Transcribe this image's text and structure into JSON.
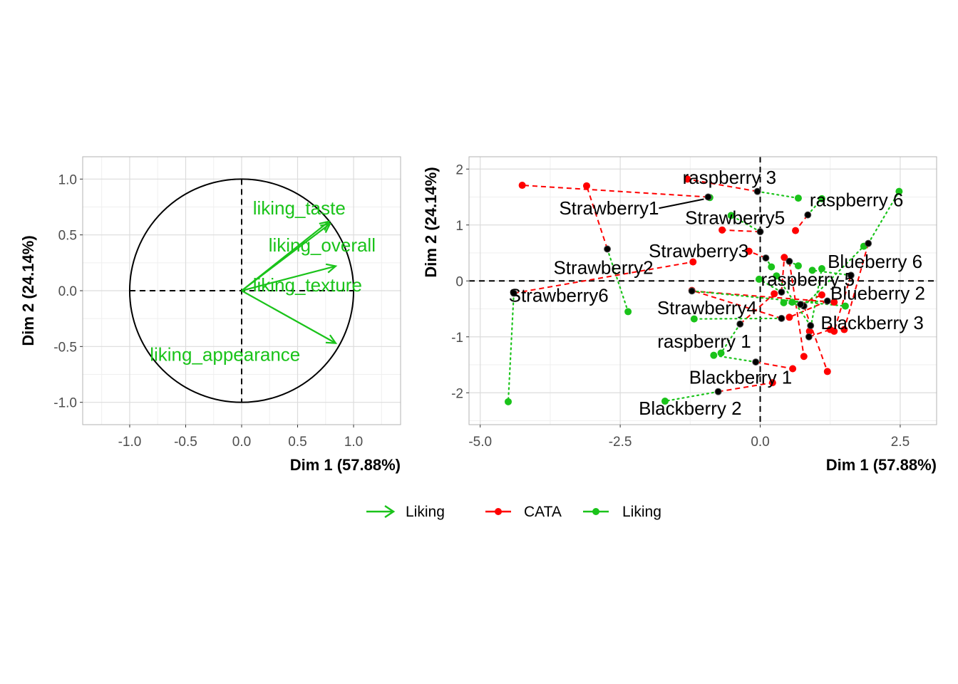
{
  "colors": {
    "cata": "#ff0000",
    "liking": "#1ac31a",
    "consensus": "#000000",
    "grid_major": "#dcdcdc",
    "grid_minor": "#efefef",
    "panel_border": "#b3b3b3"
  },
  "chart_data": [
    {
      "type": "scatter",
      "subtype": "correlation-circle",
      "xlabel": "Dim 1 (57.88%)",
      "ylabel": "Dim 2 (24.14%)",
      "xlim": [
        -1.42,
        1.42
      ],
      "ylim": [
        -1.2,
        1.2
      ],
      "xticks": [
        -1.0,
        -0.5,
        0.0,
        0.5,
        1.0
      ],
      "xtick_labels": [
        "-1.0",
        "-0.5",
        "0.0",
        "0.5",
        "1.0"
      ],
      "yticks": [
        -1.0,
        -0.5,
        0.0,
        0.5,
        1.0
      ],
      "ytick_labels": [
        "-1.0",
        "-0.5",
        "0.0",
        "0.5",
        "1.0"
      ],
      "grid": true,
      "vectors": [
        {
          "label": "liking_taste",
          "x": 0.78,
          "y": 0.62
        },
        {
          "label": "liking_overall",
          "x": 0.79,
          "y": 0.6
        },
        {
          "label": "liking_texture",
          "x": 0.84,
          "y": 0.22
        },
        {
          "label": "liking_appearance",
          "x": 0.84,
          "y": -0.47
        }
      ]
    },
    {
      "type": "scatter",
      "subtype": "partial-individuals",
      "xlabel": "Dim 1 (57.88%)",
      "ylabel": "Dim 2 (24.14%)",
      "xlim": [
        -5.2,
        3.15
      ],
      "ylim": [
        -2.57,
        2.22
      ],
      "xticks": [
        -5.0,
        -2.5,
        0.0,
        2.5
      ],
      "xtick_labels": [
        "-5.0",
        "-2.5",
        "0.0",
        "2.5"
      ],
      "yticks": [
        -2,
        -1,
        0,
        1,
        2
      ],
      "ytick_labels": [
        "-2",
        "-1",
        "0",
        "1",
        "2"
      ],
      "grid": true,
      "products": [
        {
          "label": "Strawberry1",
          "x": -0.93,
          "y": 1.5,
          "cata": [
            -4.25,
            1.71
          ],
          "liking": [
            -0.9,
            1.49
          ]
        },
        {
          "label": "Strawberry2",
          "x": -2.73,
          "y": 0.57,
          "cata": [
            -3.1,
            1.7
          ],
          "liking": [
            -2.36,
            -0.55
          ]
        },
        {
          "label": "Strawberry3",
          "x": 0.1,
          "y": 0.41,
          "cata": [
            -0.2,
            0.53
          ],
          "liking": [
            0.2,
            0.25
          ]
        },
        {
          "label": "Strawberry4",
          "x": -0.36,
          "y": -0.77,
          "cata": [
            0.25,
            -0.23
          ],
          "liking": [
            -0.7,
            -1.29
          ]
        },
        {
          "label": "Strawberry5",
          "x": 0.0,
          "y": 0.88,
          "cata": [
            -0.68,
            0.91
          ],
          "liking": [
            -0.52,
            1.17
          ]
        },
        {
          "label": "Strawberry6",
          "x": -4.4,
          "y": -0.22,
          "cata": [
            -1.2,
            0.34
          ],
          "liking": [
            -4.5,
            -2.16
          ]
        },
        {
          "label": "raspberry 1",
          "x": -0.08,
          "y": -1.45,
          "cata": [
            0.58,
            -1.57
          ],
          "liking": [
            -0.83,
            -1.33
          ]
        },
        {
          "label": "raspberry 3",
          "x": -0.05,
          "y": 1.6,
          "cata": [
            -1.3,
            1.82
          ],
          "liking": [
            0.68,
            1.48
          ]
        },
        {
          "label": "raspberry 5",
          "x": 0.38,
          "y": -0.2,
          "cata": [
            0.43,
            0.42
          ],
          "liking": [
            -0.02,
            0.03
          ]
        },
        {
          "label": "raspberry 6",
          "x": 0.85,
          "y": 1.18,
          "cata": [
            0.63,
            0.9
          ],
          "liking": [
            1.1,
            1.47
          ]
        },
        {
          "label": "Blueberry 6",
          "x": 1.93,
          "y": 0.67,
          "cata": [
            1.5,
            -0.87
          ],
          "liking": [
            2.48,
            1.6
          ]
        },
        {
          "label": "Blueberry 2",
          "x": 1.2,
          "y": -0.36,
          "cata": [
            0.52,
            -0.65
          ],
          "liking": [
            0.57,
            -0.38
          ]
        },
        {
          "label": "Blackberry 3",
          "x": 0.87,
          "y": -1.0,
          "cata": [
            1.25,
            -0.87
          ],
          "liking": [
            1.1,
            0.22
          ]
        },
        {
          "label": "Blackberry 1",
          "x": 0.78,
          "y": -0.45,
          "cata": [
            1.2,
            -1.62
          ],
          "liking": [
            1.85,
            0.62
          ]
        },
        {
          "label": "Blackberry 2",
          "x": -0.75,
          "y": -1.98,
          "cata": [
            0.22,
            -1.82
          ],
          "liking": [
            -1.7,
            -2.15
          ]
        },
        {
          "label": "",
          "x": 0.52,
          "y": 0.35,
          "cata": [
            0.78,
            -1.35
          ],
          "liking": [
            0.68,
            0.27
          ]
        },
        {
          "label": "",
          "x": 0.72,
          "y": -0.42,
          "cata": [
            1.1,
            -0.25
          ],
          "liking": [
            0.42,
            -0.39
          ]
        },
        {
          "label": "",
          "x": 1.62,
          "y": 0.1,
          "cata": [
            1.32,
            -0.9
          ],
          "liking": [
            0.93,
            0.19
          ]
        },
        {
          "label": "",
          "x": 0.38,
          "y": -0.67,
          "cata": [
            -1.22,
            -0.17
          ],
          "liking": [
            -1.18,
            -0.68
          ]
        },
        {
          "label": "",
          "x": 0.9,
          "y": -0.8,
          "cata": [
            0.88,
            -0.9
          ],
          "liking": [
            0.29,
            0.09
          ]
        },
        {
          "label": "",
          "x": -1.22,
          "y": -0.18,
          "cata": [
            1.32,
            -0.38
          ],
          "liking": [
            1.52,
            -0.45
          ]
        }
      ]
    }
  ],
  "legend": {
    "arrow_label": "Liking",
    "items": [
      {
        "label": "CATA",
        "color": "#ff0000"
      },
      {
        "label": "Liking",
        "color": "#1ac31a"
      }
    ]
  }
}
